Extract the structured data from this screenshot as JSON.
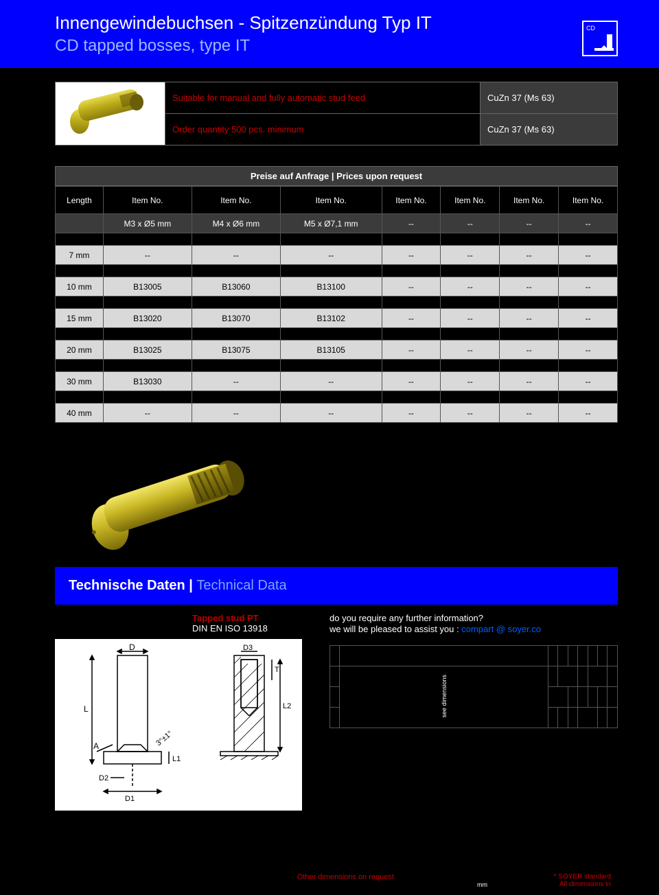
{
  "header": {
    "title_de": "Innengewindebuchsen - Spitzenzündung Typ IT",
    "title_en": "CD tapped bosses, type IT",
    "badge_label": "CD"
  },
  "info": {
    "row1_text": "Suitable for manual and fully automatic stud feed",
    "row1_material": "CuZn 37 (Ms 63)",
    "row2_text": "Order quantity 500 pcs. minimum",
    "row2_material": "CuZn 37 (Ms 63)"
  },
  "prices": {
    "header": "Preise auf Anfrage | Prices upon request",
    "cols": [
      "Length",
      "Item No.",
      "Item No.",
      "Item No.",
      "Item No.",
      "Item No.",
      "Item No.",
      "Item No."
    ],
    "spec_row": [
      "",
      "M3 x Ø5 mm",
      "M4 x Ø6 mm",
      "M5 x Ø7,1 mm",
      "--",
      "--",
      "--",
      "--"
    ],
    "rows": [
      [
        "7 mm",
        "--",
        "--",
        "--",
        "--",
        "--",
        "--",
        "--"
      ],
      [
        "10 mm",
        "B13005",
        "B13060",
        "B13100",
        "--",
        "--",
        "--",
        "--"
      ],
      [
        "15 mm",
        "B13020",
        "B13070",
        "B13102",
        "--",
        "--",
        "--",
        "--"
      ],
      [
        "20 mm",
        "B13025",
        "B13075",
        "B13105",
        "--",
        "--",
        "--",
        "--"
      ],
      [
        "30 mm",
        "B13030",
        "--",
        "--",
        "--",
        "--",
        "--",
        "--"
      ],
      [
        "40 mm",
        "--",
        "--",
        "--",
        "--",
        "--",
        "--",
        "--"
      ]
    ]
  },
  "tech": {
    "bar_de": "Technische Daten  |  ",
    "bar_en": "Technical Data",
    "label1": "Tapped stud PT",
    "label2": "DIN EN ISO 13918",
    "contact1": "do you require any further information?",
    "contact2": "we will be pleased to assist you :  ",
    "email": "compart @ soyer.co",
    "dim_side_label": "see dimensions"
  },
  "footer": {
    "center": "Other dimensions on request",
    "right1": "* SOYER standard",
    "right2": "All dimensions in",
    "mm": "mm"
  },
  "colors": {
    "blue": "#0000ff",
    "red": "#c00000",
    "grey": "#3b3b3b",
    "lightgrey": "#d9d9d9"
  }
}
